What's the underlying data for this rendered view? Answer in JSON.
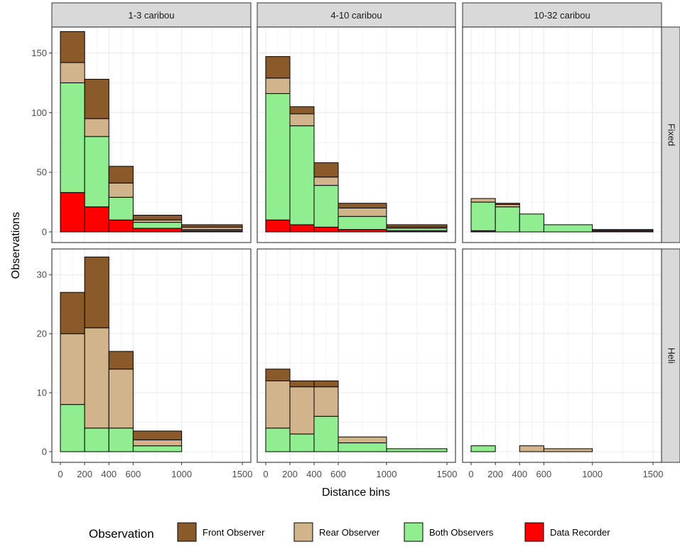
{
  "chart_data": {
    "type": "bar",
    "subtype": "faceted-stacked-histogram",
    "xlabel": "Distance bins",
    "ylabel": "Observations",
    "col_facets": [
      "1-3 caribou",
      "4-10 caribou",
      "10-32 caribou"
    ],
    "row_facets": [
      "Fixed",
      "Heli"
    ],
    "bins": [
      [
        0,
        200
      ],
      [
        200,
        400
      ],
      [
        400,
        600
      ],
      [
        600,
        1000
      ],
      [
        1000,
        1500
      ]
    ],
    "x_ticks": [
      "0",
      "200",
      "400",
      "600",
      "1000",
      "1500"
    ],
    "x_tick_values": [
      0,
      200,
      400,
      600,
      1000,
      1500
    ],
    "xlim": [
      0,
      1500
    ],
    "rows": [
      {
        "facet": "Fixed",
        "ylim": [
          0,
          170
        ],
        "y_ticks": [
          "0",
          "50",
          "100",
          "150"
        ],
        "y_tick_values": [
          0,
          50,
          100,
          150
        ]
      },
      {
        "facet": "Heli",
        "ylim": [
          0,
          34
        ],
        "y_ticks": [
          "0",
          "10",
          "20",
          "30"
        ],
        "y_tick_values": [
          0,
          10,
          20,
          30
        ]
      }
    ],
    "stack_order": [
      "Data Recorder",
      "Both Observers",
      "Rear Observer",
      "Front Observer"
    ],
    "series_colors": {
      "Front Observer": "#8B5A2B",
      "Rear Observer": "#D2B48C",
      "Both Observers": "#90EE90",
      "Data Recorder": "#FF0000"
    },
    "panels": [
      {
        "row": "Fixed",
        "col": "1-3 caribou",
        "values": {
          "Data Recorder": [
            33,
            21,
            10,
            3,
            1
          ],
          "Both Observers": [
            92,
            59,
            19,
            5,
            1
          ],
          "Rear Observer": [
            17,
            15,
            12,
            2,
            2
          ],
          "Front Observer": [
            26,
            33,
            14,
            4,
            2
          ]
        }
      },
      {
        "row": "Fixed",
        "col": "4-10 caribou",
        "values": {
          "Data Recorder": [
            10,
            6,
            4,
            2,
            1
          ],
          "Both Observers": [
            106,
            83,
            35,
            11,
            2
          ],
          "Rear Observer": [
            13,
            10,
            7,
            7,
            1
          ],
          "Front Observer": [
            18,
            6,
            12,
            4,
            2
          ]
        }
      },
      {
        "row": "Fixed",
        "col": "10-32 caribou",
        "values": {
          "Data Recorder": [
            1,
            0,
            0,
            0,
            1
          ],
          "Both Observers": [
            24,
            21,
            15,
            6,
            0
          ],
          "Rear Observer": [
            3,
            2,
            0,
            0,
            0
          ],
          "Front Observer": [
            0,
            1,
            0,
            0,
            1
          ]
        }
      },
      {
        "row": "Heli",
        "col": "1-3 caribou",
        "values": {
          "Data Recorder": [
            0,
            0,
            0,
            0,
            0
          ],
          "Both Observers": [
            8,
            4,
            4,
            1,
            0
          ],
          "Rear Observer": [
            12,
            17,
            10,
            1,
            0
          ],
          "Front Observer": [
            7,
            12,
            3,
            1.5,
            0
          ]
        }
      },
      {
        "row": "Heli",
        "col": "4-10 caribou",
        "values": {
          "Data Recorder": [
            0,
            0,
            0,
            0,
            0
          ],
          "Both Observers": [
            4,
            3,
            6,
            1.5,
            0.5
          ],
          "Rear Observer": [
            8,
            8,
            5,
            1,
            0
          ],
          "Front Observer": [
            2,
            1,
            1,
            0,
            0
          ]
        }
      },
      {
        "row": "Heli",
        "col": "10-32 caribou",
        "values": {
          "Data Recorder": [
            0,
            0,
            0,
            0,
            0
          ],
          "Both Observers": [
            1,
            0,
            0,
            0,
            0
          ],
          "Rear Observer": [
            0,
            0,
            1,
            0.5,
            0
          ],
          "Front Observer": [
            0,
            0,
            0,
            0,
            0
          ]
        }
      }
    ],
    "legend": {
      "title": "Observation",
      "position": "bottom",
      "items": [
        "Front Observer",
        "Rear Observer",
        "Both Observers",
        "Data Recorder"
      ]
    },
    "grid": true,
    "panel_background": "#FFFFFF",
    "strip_background": "#D9D9D9",
    "grid_color": "#EBEBEB"
  }
}
